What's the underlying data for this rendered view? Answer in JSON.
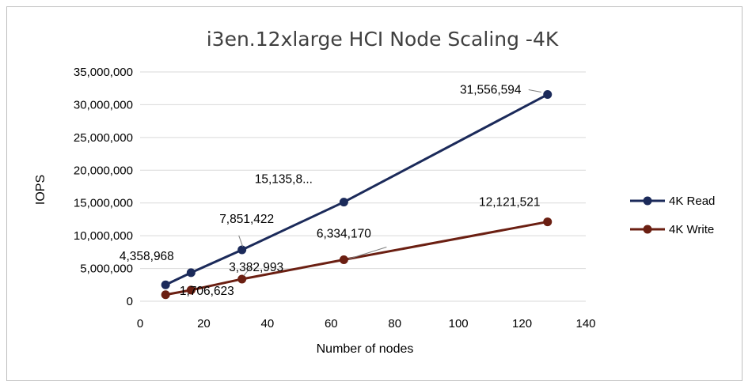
{
  "chart_data": {
    "type": "scatter",
    "title": "i3en.12xlarge HCI Node Scaling -4K",
    "xlabel": "Number of nodes",
    "ylabel": "IOPS",
    "xlim": [
      0,
      140
    ],
    "ylim": [
      0,
      35000000
    ],
    "x_ticks": [
      "0",
      "20",
      "40",
      "60",
      "80",
      "100",
      "120",
      "140"
    ],
    "y_ticks": [
      "0",
      "5,000,000",
      "10,000,000",
      "15,000,000",
      "20,000,000",
      "25,000,000",
      "30,000,000",
      "35,000,000"
    ],
    "grid": "horizontal",
    "legend": "right",
    "series": [
      {
        "name": "4K Read",
        "color": "#1b2a5a",
        "points": [
          {
            "x": 8,
            "y": 2500000,
            "label": ""
          },
          {
            "x": 16,
            "y": 4358968,
            "label": "4,358,968"
          },
          {
            "x": 32,
            "y": 7851422,
            "label": "7,851,422"
          },
          {
            "x": 64,
            "y": 15135800,
            "label": "15,135,8..."
          },
          {
            "x": 128,
            "y": 31556594,
            "label": "31,556,594"
          }
        ]
      },
      {
        "name": "4K Write",
        "color": "#6b1f12",
        "points": [
          {
            "x": 8,
            "y": 1000000,
            "label": ""
          },
          {
            "x": 16,
            "y": 1706623,
            "label": "1,706,623"
          },
          {
            "x": 32,
            "y": 3382993,
            "label": "3,382,993"
          },
          {
            "x": 64,
            "y": 6334170,
            "label": "6,334,170"
          },
          {
            "x": 128,
            "y": 12121521,
            "label": "12,121,521"
          }
        ]
      }
    ]
  }
}
